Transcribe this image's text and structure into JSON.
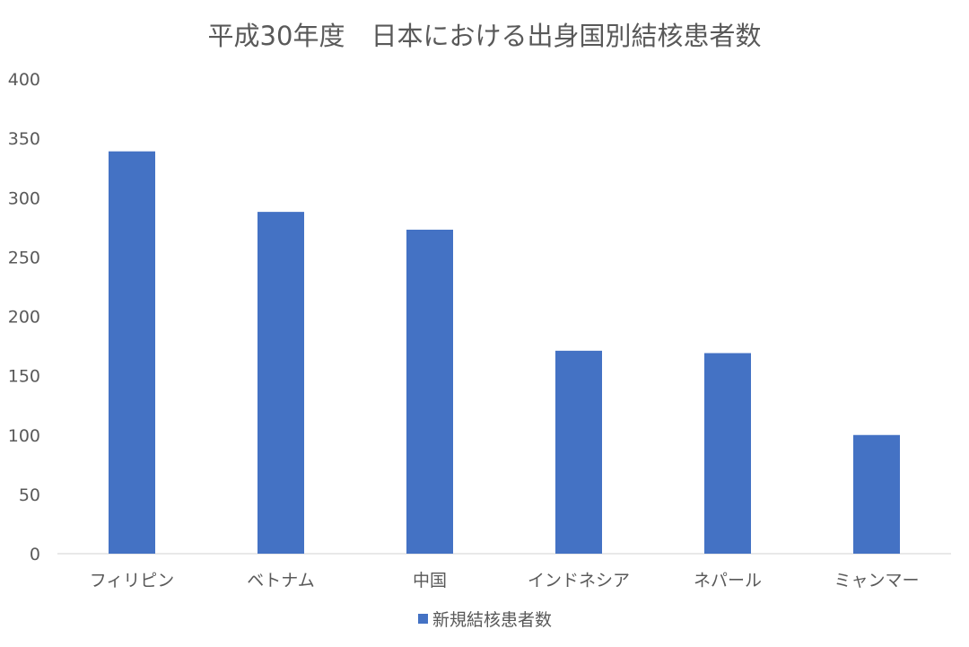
{
  "chart_data": {
    "type": "bar",
    "title": "平成30年度　日本における出身国別結核患者数",
    "xlabel": "",
    "ylabel": "",
    "categories": [
      "フィリピン",
      "ベトナム",
      "中国",
      "インドネシア",
      "ネパール",
      "ミャンマー"
    ],
    "series": [
      {
        "name": "新規結核患者数",
        "color": "#4472c4",
        "values": [
          339,
          288,
          273,
          171,
          169,
          100
        ]
      }
    ],
    "ylim": [
      0,
      400
    ],
    "yticks": [
      0,
      50,
      100,
      150,
      200,
      250,
      300,
      350,
      400
    ],
    "grid": false,
    "legend_position": "bottom"
  }
}
